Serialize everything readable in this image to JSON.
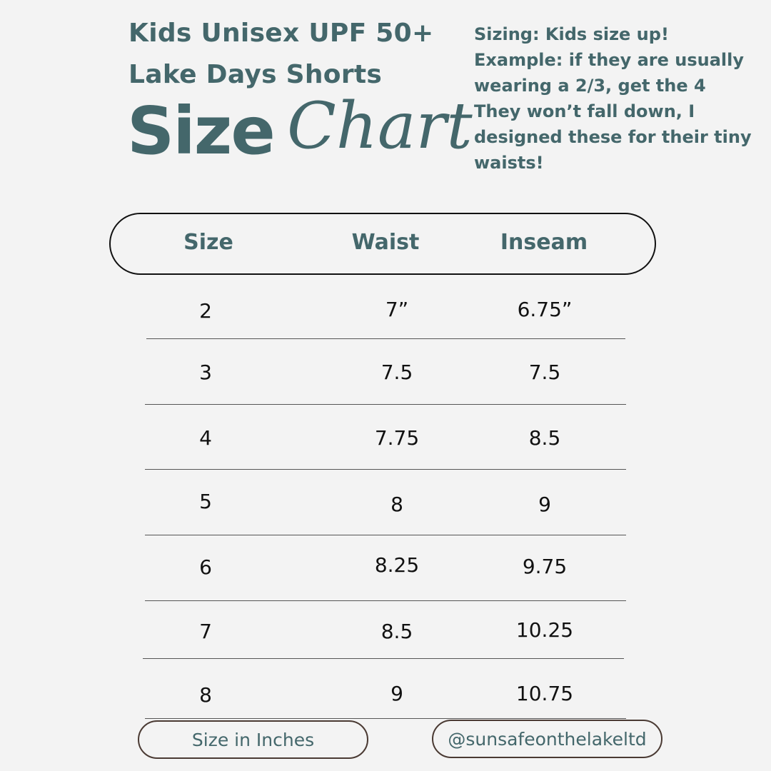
{
  "header": {
    "title_line1": "Kids Unisex UPF 50+",
    "title_line2": "Lake Days Shorts",
    "size_word": "Size",
    "chart_word": "Chart"
  },
  "note": {
    "lines": [
      "Sizing: Kids size up!",
      "Example: if they are usually",
      "wearing a 2/3, get the 4",
      "They won’t fall down, I",
      "designed these for their tiny",
      "waists!"
    ]
  },
  "table": {
    "columns": [
      "Size",
      "Waist",
      "Inseam"
    ],
    "rows": [
      [
        "2",
        "7”",
        "6.75”"
      ],
      [
        "3",
        "7.5",
        "7.5"
      ],
      [
        "4",
        "7.75",
        "8.5"
      ],
      [
        "5",
        "8",
        "9"
      ],
      [
        "6",
        "8.25",
        "9.75"
      ],
      [
        "7",
        "8.5",
        "10.25"
      ],
      [
        "8",
        "9",
        "10.75"
      ]
    ]
  },
  "footer": {
    "units_label": "Size in Inches",
    "handle": "@sunsafeonthelakeltd"
  }
}
